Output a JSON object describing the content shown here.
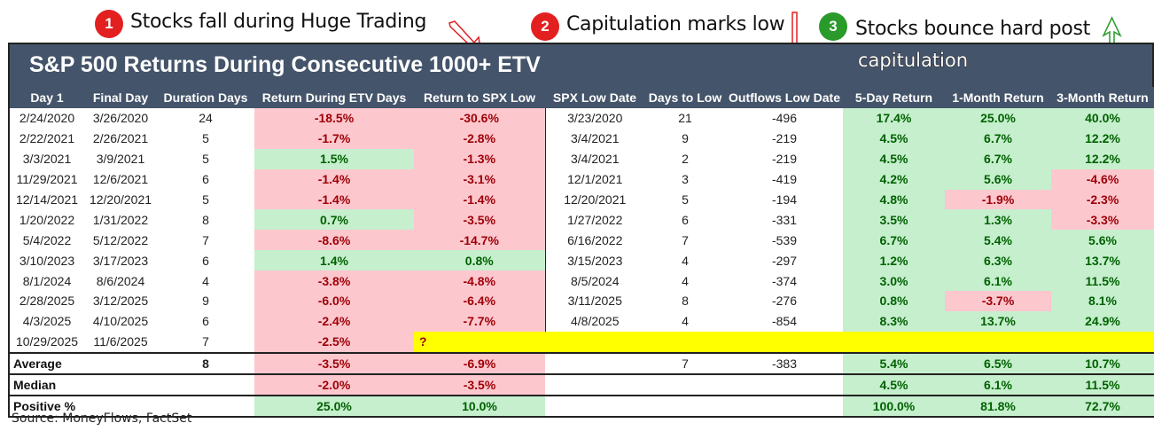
{
  "annotations": [
    {
      "number": "1",
      "text": "Stocks fall during Huge Trading",
      "color": "#e32020"
    },
    {
      "number": "2",
      "text": "Capitulation marks low",
      "color": "#e32020"
    },
    {
      "number": "3",
      "text": "Stocks bounce hard post",
      "text2": "capitulation",
      "color": "#2a9a2a"
    }
  ],
  "table": {
    "title": "S&P 500 Returns During Consecutive 1000+ ETV",
    "columns": [
      "Day 1",
      "Final Day",
      "Duration Days",
      "Return During ETV Days",
      "Return to SPX Low",
      "SPX Low Date",
      "Days to Low",
      "Outflows Low Date",
      "5-Day Return",
      "1-Month Return",
      "3-Month Return"
    ],
    "rows": [
      {
        "day1": "2/24/2020",
        "final": "3/26/2020",
        "duration": "24",
        "ret_etv": "-18.5%",
        "ret_low": "-30.6%",
        "low_date": "3/23/2020",
        "days_low": "21",
        "outflows": "-496",
        "r5d": "17.4%",
        "r1m": "25.0%",
        "r3m": "40.0%"
      },
      {
        "day1": "2/22/2021",
        "final": "2/26/2021",
        "duration": "5",
        "ret_etv": "-1.7%",
        "ret_low": "-2.8%",
        "low_date": "3/4/2021",
        "days_low": "9",
        "outflows": "-219",
        "r5d": "4.5%",
        "r1m": "6.7%",
        "r3m": "12.2%"
      },
      {
        "day1": "3/3/2021",
        "final": "3/9/2021",
        "duration": "5",
        "ret_etv": "1.5%",
        "ret_low": "-1.3%",
        "low_date": "3/4/2021",
        "days_low": "2",
        "outflows": "-219",
        "r5d": "4.5%",
        "r1m": "6.7%",
        "r3m": "12.2%"
      },
      {
        "day1": "11/29/2021",
        "final": "12/6/2021",
        "duration": "6",
        "ret_etv": "-1.4%",
        "ret_low": "-3.1%",
        "low_date": "12/1/2021",
        "days_low": "3",
        "outflows": "-419",
        "r5d": "4.2%",
        "r1m": "5.6%",
        "r3m": "-4.6%"
      },
      {
        "day1": "12/14/2021",
        "final": "12/20/2021",
        "duration": "5",
        "ret_etv": "-1.4%",
        "ret_low": "-1.4%",
        "low_date": "12/20/2021",
        "days_low": "5",
        "outflows": "-194",
        "r5d": "4.8%",
        "r1m": "-1.9%",
        "r3m": "-2.3%"
      },
      {
        "day1": "1/20/2022",
        "final": "1/31/2022",
        "duration": "8",
        "ret_etv": "0.7%",
        "ret_low": "-3.5%",
        "low_date": "1/27/2022",
        "days_low": "6",
        "outflows": "-331",
        "r5d": "3.5%",
        "r1m": "1.3%",
        "r3m": "-3.3%"
      },
      {
        "day1": "5/4/2022",
        "final": "5/12/2022",
        "duration": "7",
        "ret_etv": "-8.6%",
        "ret_low": "-14.7%",
        "low_date": "6/16/2022",
        "days_low": "7",
        "outflows": "-539",
        "r5d": "6.7%",
        "r1m": "5.4%",
        "r3m": "5.6%"
      },
      {
        "day1": "3/10/2023",
        "final": "3/17/2023",
        "duration": "6",
        "ret_etv": "1.4%",
        "ret_low": "0.8%",
        "low_date": "3/15/2023",
        "days_low": "4",
        "outflows": "-297",
        "r5d": "1.2%",
        "r1m": "6.3%",
        "r3m": "13.7%"
      },
      {
        "day1": "8/1/2024",
        "final": "8/6/2024",
        "duration": "4",
        "ret_etv": "-3.8%",
        "ret_low": "-4.8%",
        "low_date": "8/5/2024",
        "days_low": "4",
        "outflows": "-374",
        "r5d": "3.0%",
        "r1m": "6.1%",
        "r3m": "11.5%"
      },
      {
        "day1": "2/28/2025",
        "final": "3/12/2025",
        "duration": "9",
        "ret_etv": "-6.0%",
        "ret_low": "-6.4%",
        "low_date": "3/11/2025",
        "days_low": "8",
        "outflows": "-276",
        "r5d": "0.8%",
        "r1m": "-3.7%",
        "r3m": "8.1%"
      },
      {
        "day1": "4/3/2025",
        "final": "4/10/2025",
        "duration": "6",
        "ret_etv": "-2.4%",
        "ret_low": "-7.7%",
        "low_date": "4/8/2025",
        "days_low": "4",
        "outflows": "-854",
        "r5d": "8.3%",
        "r1m": "13.7%",
        "r3m": "24.9%"
      }
    ],
    "current_row": {
      "day1": "10/29/2025",
      "final": "11/6/2025",
      "duration": "7",
      "ret_etv": "-2.5%",
      "pending": "?"
    },
    "summary": [
      {
        "label": "Average",
        "duration": "8",
        "ret_etv": "-3.5%",
        "ret_low": "-6.9%",
        "days_low": "7",
        "outflows": "-383",
        "r5d": "5.4%",
        "r1m": "6.5%",
        "r3m": "10.7%"
      },
      {
        "label": "Median",
        "duration": "",
        "ret_etv": "-2.0%",
        "ret_low": "-3.5%",
        "days_low": "",
        "outflows": "",
        "r5d": "4.5%",
        "r1m": "6.1%",
        "r3m": "11.5%"
      },
      {
        "label": "Positive %",
        "duration": "",
        "ret_etv": "25.0%",
        "ret_low": "10.0%",
        "days_low": "",
        "outflows": "",
        "r5d": "100.0%",
        "r1m": "81.8%",
        "r3m": "72.7%"
      }
    ]
  },
  "source": "Source: MoneyFlows, FactSet",
  "colors": {
    "header_bg": "#44546a",
    "neg_bg": "#fdc7ce",
    "neg_text": "#9c0006",
    "pos_bg": "#c6efce",
    "pos_text": "#006100",
    "highlight": "#ffff00"
  }
}
